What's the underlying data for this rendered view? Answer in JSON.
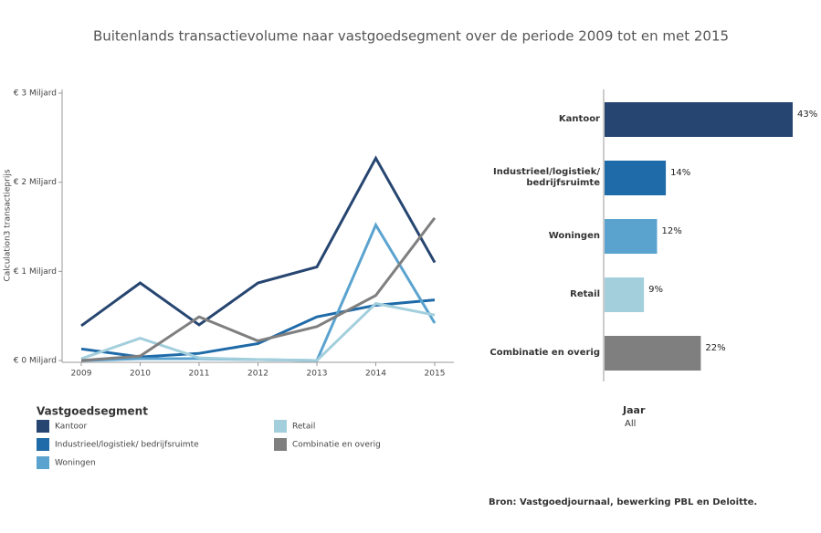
{
  "title": "Buitenlands transactievolume naar vastgoedsegment over de periode 2009 tot en met 2015",
  "chart_data": [
    {
      "type": "line",
      "y_label": "Calculation3 transactieprijs",
      "categories": [
        "2009",
        "2010",
        "2011",
        "2012",
        "2013",
        "2014",
        "2015"
      ],
      "series": [
        {
          "name": "Kantoor",
          "color": "#264570",
          "values": [
            0.39,
            0.87,
            0.4,
            0.87,
            1.05,
            2.27,
            1.1
          ]
        },
        {
          "name": "Industrieel/logistiek/ bedrijfsruimte",
          "color": "#1f6aa8",
          "values": [
            0.13,
            0.04,
            0.08,
            0.19,
            0.49,
            0.62,
            0.68
          ]
        },
        {
          "name": "Woningen",
          "color": "#5ba3cf",
          "values": [
            0.0,
            0.02,
            0.02,
            0.01,
            0.0,
            1.52,
            0.42
          ]
        },
        {
          "name": "Retail",
          "color": "#a3cfdd",
          "values": [
            0.02,
            0.25,
            0.03,
            0.01,
            0.0,
            0.64,
            0.51
          ]
        },
        {
          "name": "Combinatie en overig",
          "color": "#7f7f7f",
          "values": [
            0.0,
            0.05,
            0.49,
            0.22,
            0.38,
            0.73,
            1.6
          ]
        }
      ],
      "ylim": [
        0,
        3
      ],
      "yticks": [
        {
          "value": 0,
          "label": "€ 0 Miljard"
        },
        {
          "value": 1,
          "label": "€ 1 Miljard"
        },
        {
          "value": 2,
          "label": "€ 2 Miljard"
        },
        {
          "value": 3,
          "label": "€ 3 Miljard"
        }
      ],
      "legend_title": "Vastgoedsegment"
    },
    {
      "type": "bar",
      "orientation": "horizontal",
      "categories": [
        "Kantoor",
        "Industrieel/logistiek/ bedrijfsruimte",
        "Woningen",
        "Retail",
        "Combinatie en overig"
      ],
      "values": [
        43,
        14,
        12,
        9,
        22
      ],
      "value_labels": [
        "43%",
        "14%",
        "12%",
        "9%",
        "22%"
      ],
      "colors": [
        "#264570",
        "#1f6aa8",
        "#5ba3cf",
        "#a3cfdd",
        "#7f7f7f"
      ]
    }
  ],
  "filter": {
    "label": "Jaar",
    "value": "All"
  },
  "source": "Bron: Vastgoedjournaal, bewerking PBL en Deloitte."
}
